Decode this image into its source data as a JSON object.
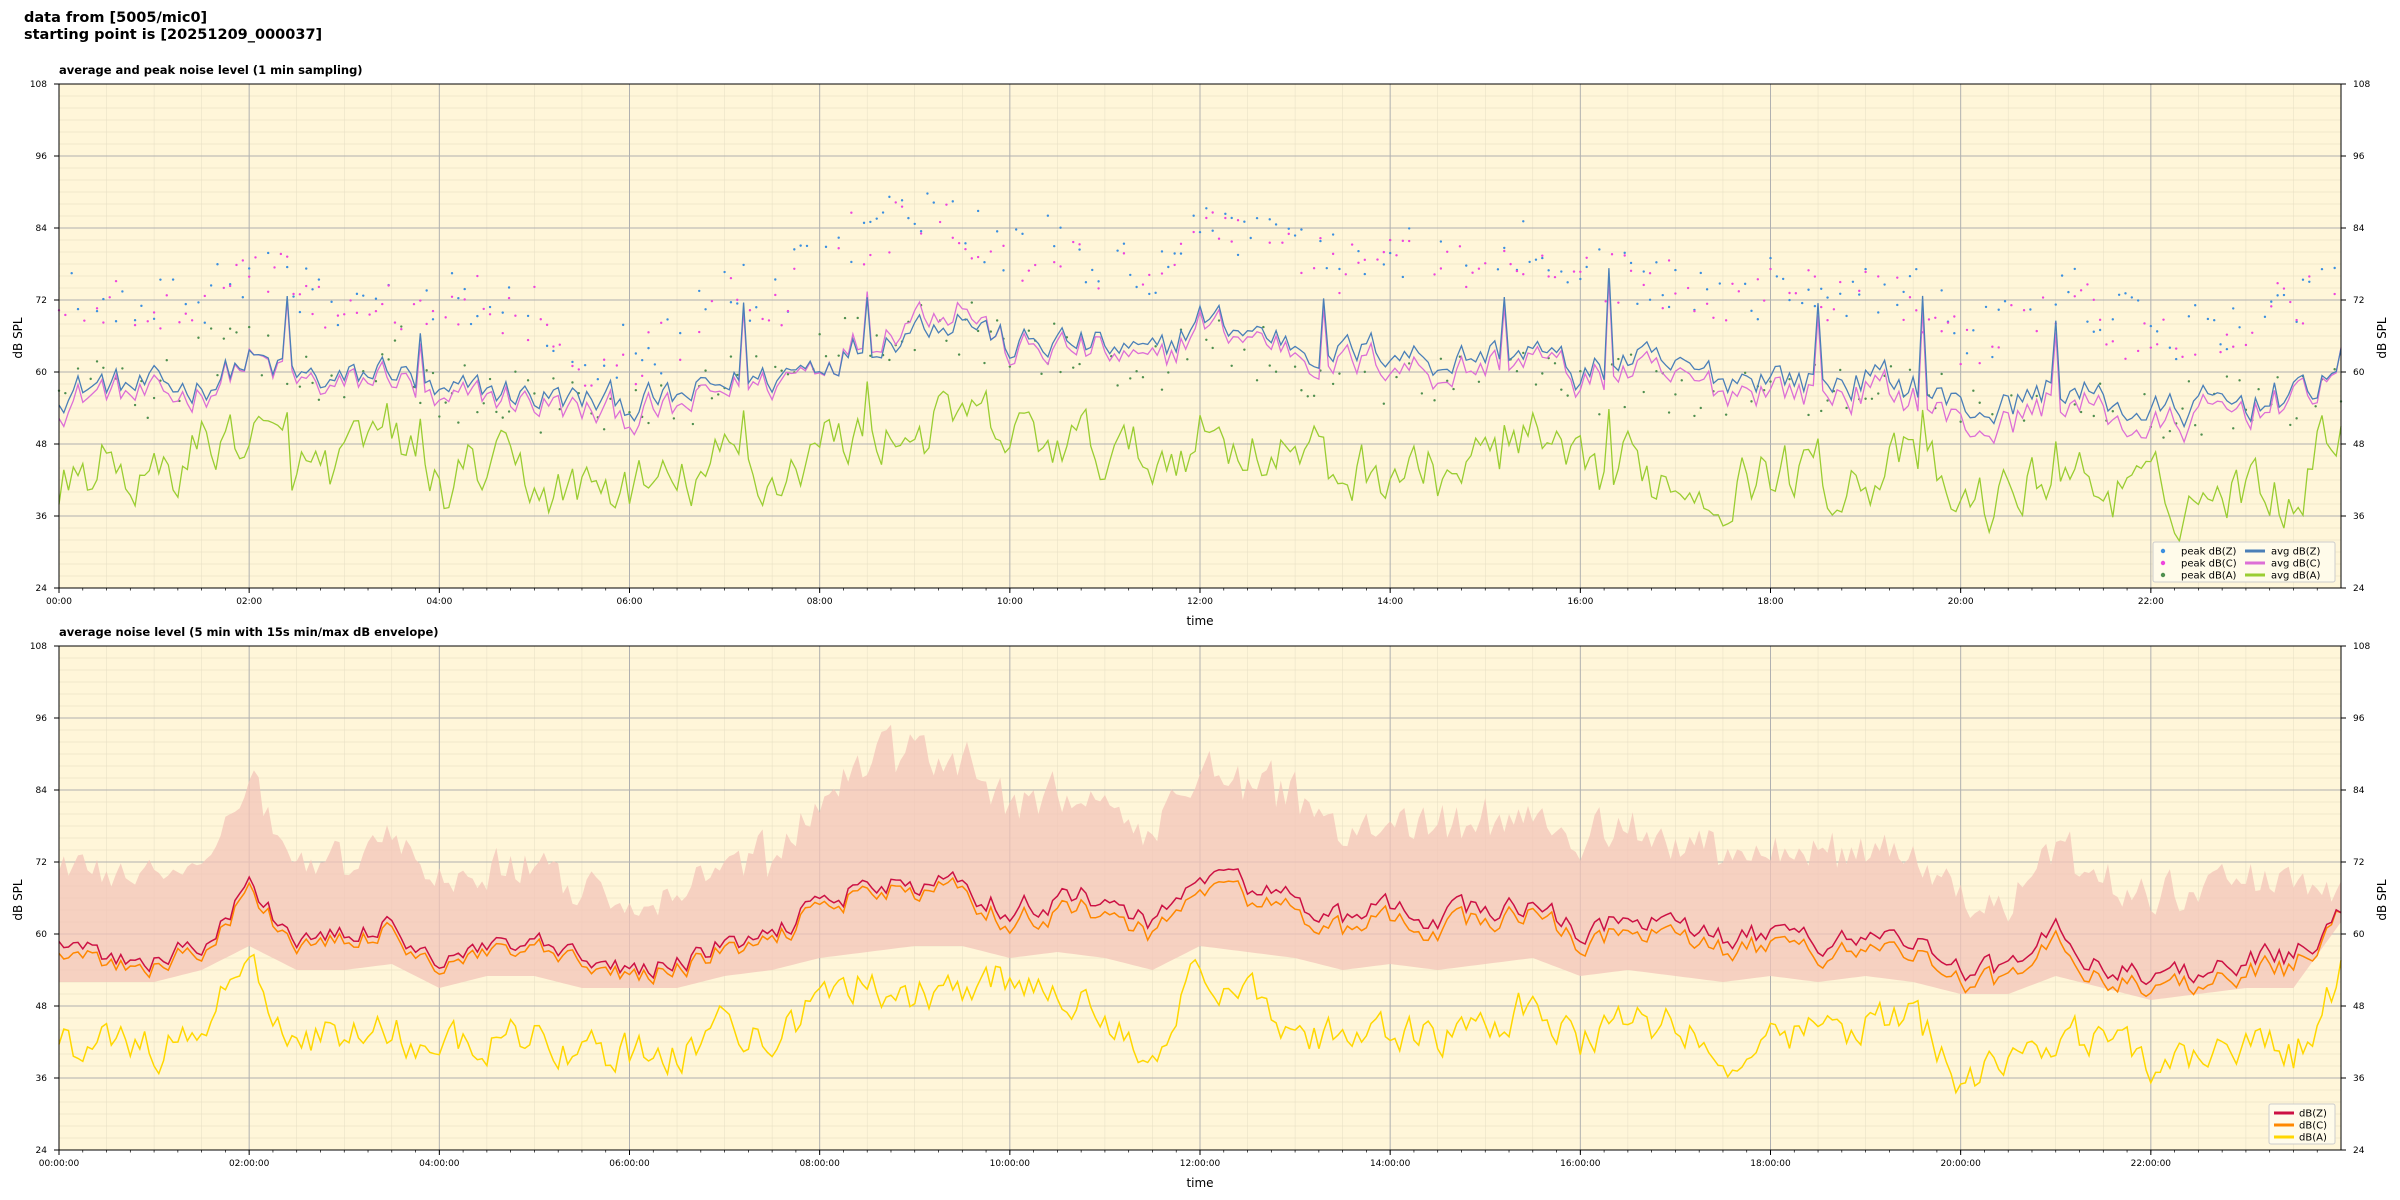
{
  "header": {
    "line1": "data from [5005/mic0]",
    "line2": "starting point is [20251209_000037]"
  },
  "chart_data": [
    {
      "type": "line",
      "title": "average and peak noise level (1 min sampling)",
      "xlabel": "time",
      "ylabel": "dB SPL",
      "ylim": [
        24,
        108
      ],
      "yticks": [
        24,
        36,
        48,
        60,
        72,
        84,
        96,
        108
      ],
      "xlim_hours": [
        0,
        24
      ],
      "xticks": [
        "00:00",
        "02:00",
        "04:00",
        "06:00",
        "08:00",
        "10:00",
        "12:00",
        "14:00",
        "16:00",
        "18:00",
        "20:00",
        "22:00"
      ],
      "grid": true,
      "legend_position": "bottom-right",
      "colors": {
        "peakZ": "#3a8fe0",
        "peakC": "#ee44dd",
        "peakA": "#4f8f4f",
        "avgZ": "#4a7fb8",
        "avgC": "#dd6fd6",
        "avgA": "#9acd32",
        "background": "#fff6d9"
      },
      "legend": [
        "peak dB(Z)",
        "peak dB(C)",
        "peak dB(A)",
        "avg dB(Z)",
        "avg dB(C)",
        "avg dB(A)"
      ],
      "x_hours": [
        0,
        0.5,
        1,
        1.5,
        2,
        2.5,
        3,
        3.5,
        4,
        4.5,
        5,
        5.5,
        6,
        6.5,
        7,
        7.5,
        8,
        8.5,
        9,
        9.5,
        10,
        10.5,
        11,
        11.5,
        12,
        12.5,
        13,
        13.5,
        14,
        14.5,
        15,
        15.5,
        16,
        16.5,
        17,
        17.5,
        18,
        18.5,
        19,
        19.5,
        20,
        20.5,
        21,
        21.5,
        22,
        22.5,
        23,
        23.5,
        24
      ],
      "series": [
        {
          "name": "avg dB(Z)",
          "values": [
            57,
            58,
            57,
            58,
            62,
            59,
            58,
            61,
            55,
            57,
            56,
            55,
            55,
            55,
            58,
            59,
            62,
            65,
            68,
            70,
            64,
            65,
            64,
            62,
            69,
            67,
            65,
            63,
            64,
            62,
            63,
            64,
            59,
            62,
            60,
            59,
            60,
            58,
            59,
            58,
            54,
            54,
            58,
            55,
            53,
            54,
            55,
            55,
            62
          ]
        },
        {
          "name": "avg dB(C)",
          "values": [
            55,
            57,
            55,
            57,
            62,
            58,
            57,
            60,
            53,
            56,
            55,
            53,
            53,
            53,
            57,
            58,
            62,
            66,
            70,
            72,
            63,
            64,
            63,
            60,
            68,
            66,
            64,
            61,
            62,
            60,
            61,
            63,
            58,
            60,
            58,
            57,
            58,
            56,
            57,
            56,
            51,
            51,
            56,
            53,
            50,
            52,
            54,
            54,
            62
          ]
        },
        {
          "name": "avg dB(A)",
          "values": [
            40,
            45,
            41,
            48,
            50,
            43,
            44,
            50,
            40,
            44,
            41,
            40,
            41,
            40,
            45,
            42,
            48,
            50,
            50,
            52,
            49,
            48,
            47,
            45,
            50,
            48,
            46,
            43,
            44,
            43,
            45,
            48,
            41,
            44,
            42,
            41,
            44,
            42,
            43,
            45,
            37,
            39,
            44,
            41,
            39,
            39,
            41,
            40,
            54
          ]
        },
        {
          "name": "peak dB(Z)",
          "values": [
            72,
            73,
            73,
            72,
            78,
            75,
            72,
            73,
            71,
            73,
            71,
            64,
            63,
            65,
            74,
            72,
            80,
            84,
            86,
            86,
            80,
            82,
            78,
            77,
            86,
            84,
            82,
            78,
            80,
            78,
            79,
            82,
            76,
            76,
            75,
            73,
            74,
            74,
            73,
            74,
            66,
            67,
            74,
            70,
            66,
            67,
            70,
            72,
            74
          ]
        },
        {
          "name": "peak dB(C)",
          "values": [
            70,
            72,
            71,
            71,
            77,
            74,
            71,
            72,
            70,
            72,
            70,
            62,
            62,
            64,
            73,
            71,
            79,
            83,
            85,
            85,
            79,
            81,
            77,
            76,
            85,
            83,
            81,
            77,
            79,
            77,
            78,
            81,
            75,
            75,
            74,
            72,
            73,
            73,
            72,
            73,
            65,
            66,
            73,
            69,
            65,
            66,
            69,
            71,
            73
          ]
        },
        {
          "name": "peak dB(A)",
          "values": [
            55,
            60,
            56,
            62,
            66,
            58,
            60,
            65,
            54,
            58,
            55,
            54,
            55,
            54,
            60,
            57,
            64,
            66,
            66,
            68,
            64,
            63,
            62,
            60,
            66,
            64,
            61,
            58,
            59,
            58,
            60,
            63,
            56,
            59,
            57,
            56,
            59,
            57,
            58,
            60,
            52,
            54,
            59,
            56,
            54,
            54,
            56,
            55,
            60
          ]
        }
      ]
    },
    {
      "type": "line",
      "title": "average noise level (5 min with 15s min/max dB envelope)",
      "xlabel": "time",
      "ylabel": "dB SPL",
      "ylim": [
        24,
        108
      ],
      "yticks": [
        24,
        36,
        48,
        60,
        72,
        84,
        96,
        108
      ],
      "xlim_hours": [
        0,
        24
      ],
      "xticks": [
        "00:00:00",
        "02:00:00",
        "04:00:00",
        "06:00:00",
        "08:00:00",
        "10:00:00",
        "12:00:00",
        "14:00:00",
        "16:00:00",
        "18:00:00",
        "20:00:00",
        "22:00:00"
      ],
      "grid": true,
      "legend_position": "bottom-right",
      "colors": {
        "Z": "#cc1144",
        "C": "#ff8800",
        "A": "#ffd700",
        "envelope": "#f3c4b8",
        "background": "#fff6d9"
      },
      "legend": [
        "dB(Z)",
        "dB(C)",
        "dB(A)"
      ],
      "x_hours": [
        0,
        0.5,
        1,
        1.5,
        2,
        2.5,
        3,
        3.5,
        4,
        4.5,
        5,
        5.5,
        6,
        6.5,
        7,
        7.5,
        8,
        8.5,
        9,
        9.5,
        10,
        10.5,
        11,
        11.5,
        12,
        12.5,
        13,
        13.5,
        14,
        14.5,
        15,
        15.5,
        16,
        16.5,
        17,
        17.5,
        18,
        18.5,
        19,
        19.5,
        20,
        20.5,
        21,
        21.5,
        22,
        22.5,
        23,
        23.5,
        24
      ],
      "series": [
        {
          "name": "dB(Z)",
          "values": [
            57,
            56,
            56,
            58,
            68,
            59,
            59,
            62,
            55,
            57,
            58,
            55,
            54,
            55,
            58,
            59,
            66,
            68,
            68,
            68,
            64,
            66,
            66,
            61,
            70,
            68,
            66,
            62,
            64,
            63,
            64,
            65,
            60,
            63,
            61,
            59,
            60,
            59,
            60,
            59,
            54,
            54,
            60,
            55,
            53,
            54,
            56,
            56,
            63
          ]
        },
        {
          "name": "dB(C)",
          "values": [
            55,
            55,
            55,
            57,
            67,
            58,
            58,
            61,
            54,
            56,
            57,
            54,
            53,
            54,
            57,
            58,
            65,
            67,
            67,
            67,
            62,
            64,
            64,
            59,
            68,
            66,
            64,
            60,
            62,
            61,
            62,
            64,
            58,
            61,
            59,
            57,
            58,
            57,
            58,
            57,
            52,
            52,
            58,
            53,
            51,
            52,
            54,
            54,
            63
          ]
        },
        {
          "name": "dB(A)",
          "values": [
            40,
            42,
            41,
            44,
            54,
            42,
            43,
            45,
            39,
            42,
            43,
            40,
            40,
            40,
            46,
            42,
            48,
            53,
            50,
            52,
            52,
            49,
            48,
            42,
            53,
            48,
            46,
            42,
            43,
            42,
            44,
            48,
            41,
            45,
            44,
            40,
            43,
            44,
            45,
            46,
            37,
            39,
            43,
            42,
            39,
            40,
            41,
            40,
            53
          ]
        },
        {
          "name": "envelope max",
          "values": [
            70,
            68,
            67,
            70,
            82,
            70,
            69,
            74,
            66,
            67,
            68,
            64,
            62,
            63,
            70,
            69,
            80,
            86,
            86,
            86,
            78,
            80,
            80,
            73,
            85,
            82,
            80,
            74,
            76,
            75,
            76,
            78,
            72,
            75,
            72,
            70,
            72,
            70,
            72,
            70,
            62,
            62,
            72,
            66,
            62,
            64,
            67,
            66,
            64
          ]
        },
        {
          "name": "envelope min",
          "values": [
            52,
            52,
            52,
            54,
            58,
            54,
            54,
            55,
            51,
            53,
            53,
            51,
            51,
            51,
            53,
            54,
            56,
            57,
            58,
            58,
            56,
            57,
            56,
            54,
            58,
            57,
            56,
            54,
            55,
            54,
            55,
            56,
            53,
            54,
            53,
            52,
            53,
            52,
            53,
            52,
            50,
            50,
            53,
            51,
            49,
            50,
            51,
            51,
            62
          ]
        }
      ]
    }
  ]
}
